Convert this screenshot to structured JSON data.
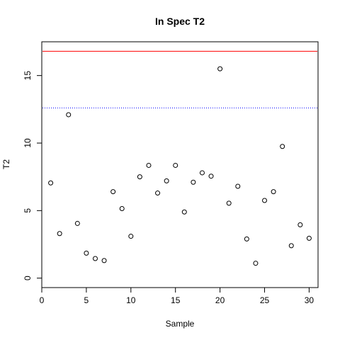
{
  "chart_data": {
    "type": "scatter",
    "title": "In Spec T2",
    "xlabel": "Sample",
    "ylabel": "T2",
    "xlim": [
      0,
      31
    ],
    "ylim": [
      -0.7,
      17.5
    ],
    "x_ticks": [
      "0",
      "5",
      "10",
      "15",
      "20",
      "25",
      "30"
    ],
    "y_ticks": [
      "0",
      "5",
      "10",
      "15"
    ],
    "grid": false,
    "reference_lines": [
      {
        "y": 16.8,
        "color": "#ff0000",
        "style": "solid"
      },
      {
        "y": 12.6,
        "color": "#0000ff",
        "style": "dotted"
      }
    ],
    "series": [
      {
        "marker": "open-circle",
        "x": [
          1,
          2,
          3,
          4,
          5,
          6,
          7,
          8,
          9,
          10,
          11,
          12,
          13,
          14,
          15,
          16,
          17,
          18,
          19,
          20,
          21,
          22,
          23,
          24,
          25,
          26,
          27,
          28,
          29,
          30
        ],
        "y": [
          7.05,
          3.3,
          12.1,
          4.05,
          1.85,
          1.45,
          1.3,
          6.4,
          5.15,
          3.1,
          7.5,
          8.35,
          6.3,
          7.2,
          8.35,
          4.9,
          7.1,
          7.8,
          7.55,
          15.5,
          5.55,
          6.8,
          2.9,
          1.1,
          5.75,
          6.4,
          9.75,
          2.4,
          3.95,
          2.95
        ]
      }
    ]
  }
}
